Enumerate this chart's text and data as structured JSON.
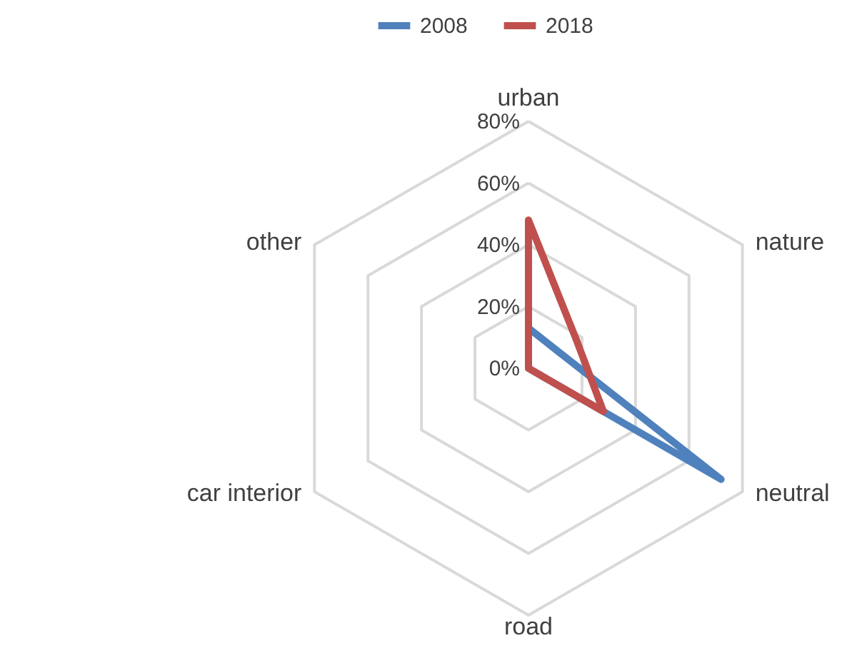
{
  "chart_data": {
    "type": "radar",
    "categories": [
      "urban",
      "nature",
      "neutral",
      "road",
      "car interior",
      "other"
    ],
    "series": [
      {
        "name": "2008",
        "color": "#4f81bd",
        "values": [
          13,
          11,
          72,
          0,
          0,
          0
        ]
      },
      {
        "name": "2018",
        "color": "#c0504d",
        "values": [
          48,
          18,
          28,
          0,
          0,
          0
        ]
      }
    ],
    "ylim": [
      0,
      80
    ],
    "yticks": [
      {
        "value": 0,
        "label": "0%"
      },
      {
        "value": 20,
        "label": "20%"
      },
      {
        "value": 40,
        "label": "40%"
      },
      {
        "value": 60,
        "label": "60%"
      },
      {
        "value": 80,
        "label": "80%"
      }
    ],
    "grid": true,
    "legend": "top"
  }
}
